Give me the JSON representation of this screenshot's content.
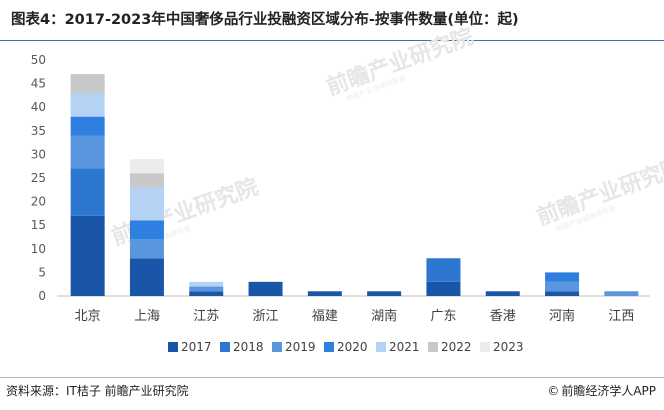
{
  "title": "图表4：2017-2023年中国奢侈品行业投融资区域分布-按事件数量(单位：起)",
  "source_text": "资料来源：IT桔子 前瞻产业研究院",
  "brand_text": "前瞻经济学人APP",
  "brand_icon": "copyright-circle-icon",
  "watermark": {
    "text": "前瞻产业研究院",
    "subtext": "中国产业咨询领导者"
  },
  "chart_data": {
    "type": "bar",
    "stacked": true,
    "categories": [
      "北京",
      "上海",
      "江苏",
      "浙江",
      "福建",
      "湖南",
      "广东",
      "香港",
      "河南",
      "江西"
    ],
    "series": [
      {
        "name": "2017",
        "color": "#1a56a8",
        "values": [
          17,
          8,
          1,
          3,
          1,
          1,
          3,
          1,
          1,
          0
        ]
      },
      {
        "name": "2018",
        "color": "#2e77d0",
        "values": [
          10,
          0,
          0,
          0,
          0,
          0,
          5,
          0,
          0,
          0
        ]
      },
      {
        "name": "2019",
        "color": "#5a96de",
        "values": [
          7,
          4,
          1,
          0,
          0,
          0,
          0,
          0,
          2,
          1
        ]
      },
      {
        "name": "2020",
        "color": "#2f7fe0",
        "values": [
          4,
          4,
          0,
          0,
          0,
          0,
          0,
          0,
          2,
          0
        ]
      },
      {
        "name": "2021",
        "color": "#b4d2f4",
        "values": [
          5,
          7,
          1,
          0,
          0,
          0,
          0,
          0,
          0,
          0
        ]
      },
      {
        "name": "2022",
        "color": "#c8c8c8",
        "values": [
          4,
          3,
          0,
          0,
          0,
          0,
          0,
          0,
          0,
          0
        ]
      },
      {
        "name": "2023",
        "color": "#ececec",
        "values": [
          0,
          3,
          0,
          0,
          0,
          0,
          0,
          0,
          0,
          0
        ]
      }
    ],
    "ylim": [
      0,
      50
    ],
    "yticks": [
      0,
      5,
      10,
      15,
      20,
      25,
      30,
      35,
      40,
      45,
      50
    ],
    "grid": false,
    "legend_position": "bottom"
  }
}
